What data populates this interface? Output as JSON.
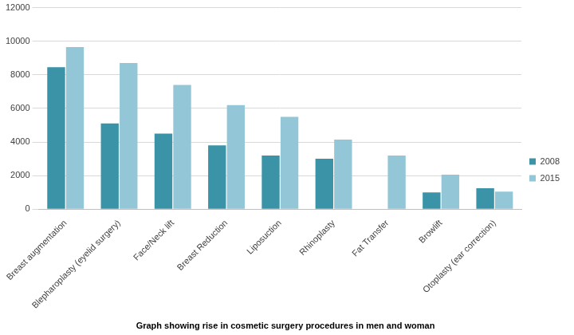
{
  "chart_data": {
    "type": "bar",
    "title": "Graph showing rise in cosmetic surgery procedures in men and woman",
    "categories": [
      "Breast augmentation",
      "Blepharoplasty (eyelid surgery)",
      "Face/Neck lift",
      "Breast Reduction",
      "Liposuction",
      "Rhinoplasty",
      "Fat Transfer",
      "Browlift",
      "Otoplasty (ear correction)"
    ],
    "series": [
      {
        "name": "2008",
        "color": "#3a93a7",
        "values": [
          8450,
          5100,
          4500,
          3800,
          3200,
          3000,
          null,
          1000,
          1250
        ]
      },
      {
        "name": "2015",
        "color": "#93c6d6",
        "values": [
          9650,
          8700,
          7400,
          6200,
          5500,
          4150,
          3200,
          2050,
          1050
        ]
      }
    ],
    "ylim": [
      0,
      12000
    ],
    "yticks": [
      0,
      2000,
      4000,
      6000,
      8000,
      10000,
      12000
    ],
    "grid": true,
    "legend": "right"
  }
}
